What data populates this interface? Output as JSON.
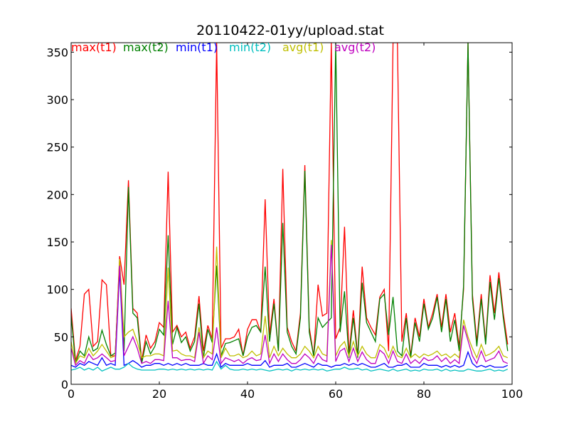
{
  "chart_data": {
    "type": "line",
    "title": "20110422-01yy/upload.stat",
    "xlabel": "",
    "ylabel": "",
    "xlim": [
      0,
      100
    ],
    "ylim": [
      0,
      360
    ],
    "xticks": [
      0,
      20,
      40,
      60,
      80,
      100
    ],
    "yticks": [
      0,
      50,
      100,
      150,
      200,
      250,
      300,
      350
    ],
    "grid": false,
    "legend_placement": "top-left, inline row",
    "series": [
      {
        "name": "max(t1)",
        "color": "#ff0000",
        "values": [
          80,
          25,
          40,
          95,
          100,
          40,
          45,
          110,
          105,
          30,
          30,
          135,
          105,
          215,
          80,
          75,
          25,
          52,
          38,
          45,
          65,
          60,
          224,
          55,
          62,
          50,
          55,
          38,
          50,
          93,
          35,
          62,
          48,
          360,
          38,
          48,
          48,
          50,
          58,
          30,
          58,
          68,
          68,
          55,
          195,
          52,
          90,
          35,
          227,
          60,
          45,
          35,
          75,
          231,
          60,
          30,
          105,
          72,
          75,
          360,
          48,
          60,
          166,
          32,
          78,
          30,
          124,
          70,
          60,
          52,
          92,
          100,
          35,
          360,
          360,
          45,
          75,
          30,
          70,
          50,
          90,
          60,
          75,
          95,
          60,
          95,
          55,
          75,
          40,
          100,
          360,
          95,
          45,
          95,
          45,
          115,
          75,
          118,
          75,
          42
        ],
        "label_color": "#ff0000"
      },
      {
        "name": "max(t2)",
        "color": "#008000",
        "values": [
          72,
          22,
          35,
          30,
          50,
          35,
          38,
          57,
          42,
          30,
          33,
          125,
          35,
          208,
          75,
          70,
          22,
          45,
          32,
          40,
          58,
          52,
          157,
          42,
          60,
          44,
          50,
          35,
          45,
          85,
          28,
          58,
          44,
          125,
          30,
          43,
          44,
          46,
          48,
          30,
          50,
          60,
          62,
          55,
          124,
          45,
          85,
          35,
          170,
          55,
          40,
          32,
          70,
          225,
          55,
          30,
          70,
          60,
          65,
          70,
          360,
          55,
          98,
          28,
          70,
          28,
          107,
          65,
          55,
          45,
          90,
          95,
          52,
          92,
          35,
          30,
          70,
          28,
          65,
          45,
          85,
          58,
          70,
          92,
          55,
          90,
          45,
          68,
          35,
          104,
          360,
          90,
          40,
          90,
          42,
          108,
          68,
          112,
          70,
          35
        ]
      },
      {
        "name": "min(t1)",
        "color": "#0000ff",
        "values": [
          20,
          18,
          22,
          20,
          24,
          22,
          20,
          28,
          20,
          22,
          20,
          120,
          20,
          22,
          25,
          22,
          18,
          20,
          20,
          22,
          22,
          20,
          22,
          20,
          22,
          20,
          22,
          20,
          20,
          20,
          22,
          20,
          20,
          32,
          18,
          22,
          20,
          20,
          20,
          20,
          22,
          20,
          20,
          20,
          25,
          18,
          20,
          20,
          20,
          22,
          18,
          18,
          20,
          22,
          20,
          18,
          22,
          20,
          20,
          18,
          20,
          20,
          22,
          20,
          22,
          20,
          22,
          20,
          18,
          18,
          20,
          22,
          18,
          18,
          20,
          20,
          22,
          18,
          18,
          18,
          22,
          20,
          20,
          20,
          18,
          20,
          18,
          20,
          18,
          20,
          34,
          22,
          18,
          20,
          18,
          20,
          18,
          18,
          18,
          20
        ]
      },
      {
        "name": "min(t2)",
        "color": "#00bfbf",
        "values": [
          15,
          16,
          18,
          15,
          17,
          15,
          18,
          14,
          16,
          18,
          16,
          16,
          18,
          22,
          18,
          16,
          15,
          15,
          15,
          15,
          16,
          16,
          15,
          16,
          15,
          16,
          15,
          16,
          15,
          16,
          15,
          16,
          15,
          24,
          16,
          20,
          16,
          15,
          15,
          16,
          15,
          16,
          15,
          16,
          15,
          14,
          15,
          16,
          15,
          16,
          14,
          16,
          15,
          16,
          15,
          16,
          15,
          16,
          14,
          15,
          16,
          16,
          18,
          16,
          16,
          17,
          15,
          16,
          14,
          15,
          16,
          15,
          14,
          16,
          14,
          15,
          16,
          14,
          15,
          14,
          16,
          15,
          15,
          16,
          14,
          16,
          14,
          15,
          14,
          14,
          16,
          15,
          14,
          14,
          15,
          16,
          14,
          15,
          14,
          16
        ]
      },
      {
        "name": "avg(t1)",
        "color": "#bfbf00",
        "values": [
          45,
          22,
          30,
          28,
          38,
          30,
          35,
          42,
          35,
          28,
          30,
          132,
          50,
          55,
          58,
          45,
          28,
          30,
          30,
          32,
          32,
          30,
          123,
          35,
          36,
          32,
          30,
          30,
          28,
          60,
          28,
          35,
          32,
          145,
          28,
          38,
          30,
          30,
          32,
          28,
          30,
          35,
          30,
          32,
          72,
          28,
          40,
          30,
          38,
          32,
          28,
          28,
          32,
          40,
          35,
          28,
          40,
          32,
          30,
          152,
          30,
          40,
          45,
          30,
          45,
          30,
          40,
          32,
          28,
          28,
          42,
          38,
          28,
          40,
          30,
          28,
          38,
          28,
          32,
          28,
          32,
          30,
          32,
          35,
          30,
          32,
          28,
          32,
          28,
          68,
          50,
          38,
          28,
          42,
          30,
          32,
          35,
          40,
          30,
          28
        ]
      },
      {
        "name": "avg(t2)",
        "color": "#bf00bf",
        "values": [
          38,
          20,
          25,
          22,
          32,
          26,
          28,
          32,
          28,
          24,
          25,
          125,
          30,
          40,
          50,
          38,
          22,
          24,
          22,
          26,
          26,
          25,
          88,
          28,
          28,
          25,
          26,
          26,
          24,
          55,
          22,
          30,
          26,
          60,
          22,
          28,
          26,
          24,
          26,
          22,
          26,
          28,
          25,
          26,
          52,
          22,
          32,
          24,
          32,
          26,
          22,
          22,
          26,
          32,
          28,
          22,
          32,
          26,
          24,
          147,
          24,
          35,
          38,
          24,
          38,
          24,
          34,
          26,
          22,
          22,
          36,
          32,
          22,
          35,
          24,
          22,
          32,
          22,
          26,
          22,
          28,
          25,
          26,
          30,
          24,
          28,
          22,
          26,
          22,
          62,
          46,
          30,
          22,
          35,
          24,
          26,
          28,
          35,
          24,
          22
        ]
      }
    ]
  }
}
